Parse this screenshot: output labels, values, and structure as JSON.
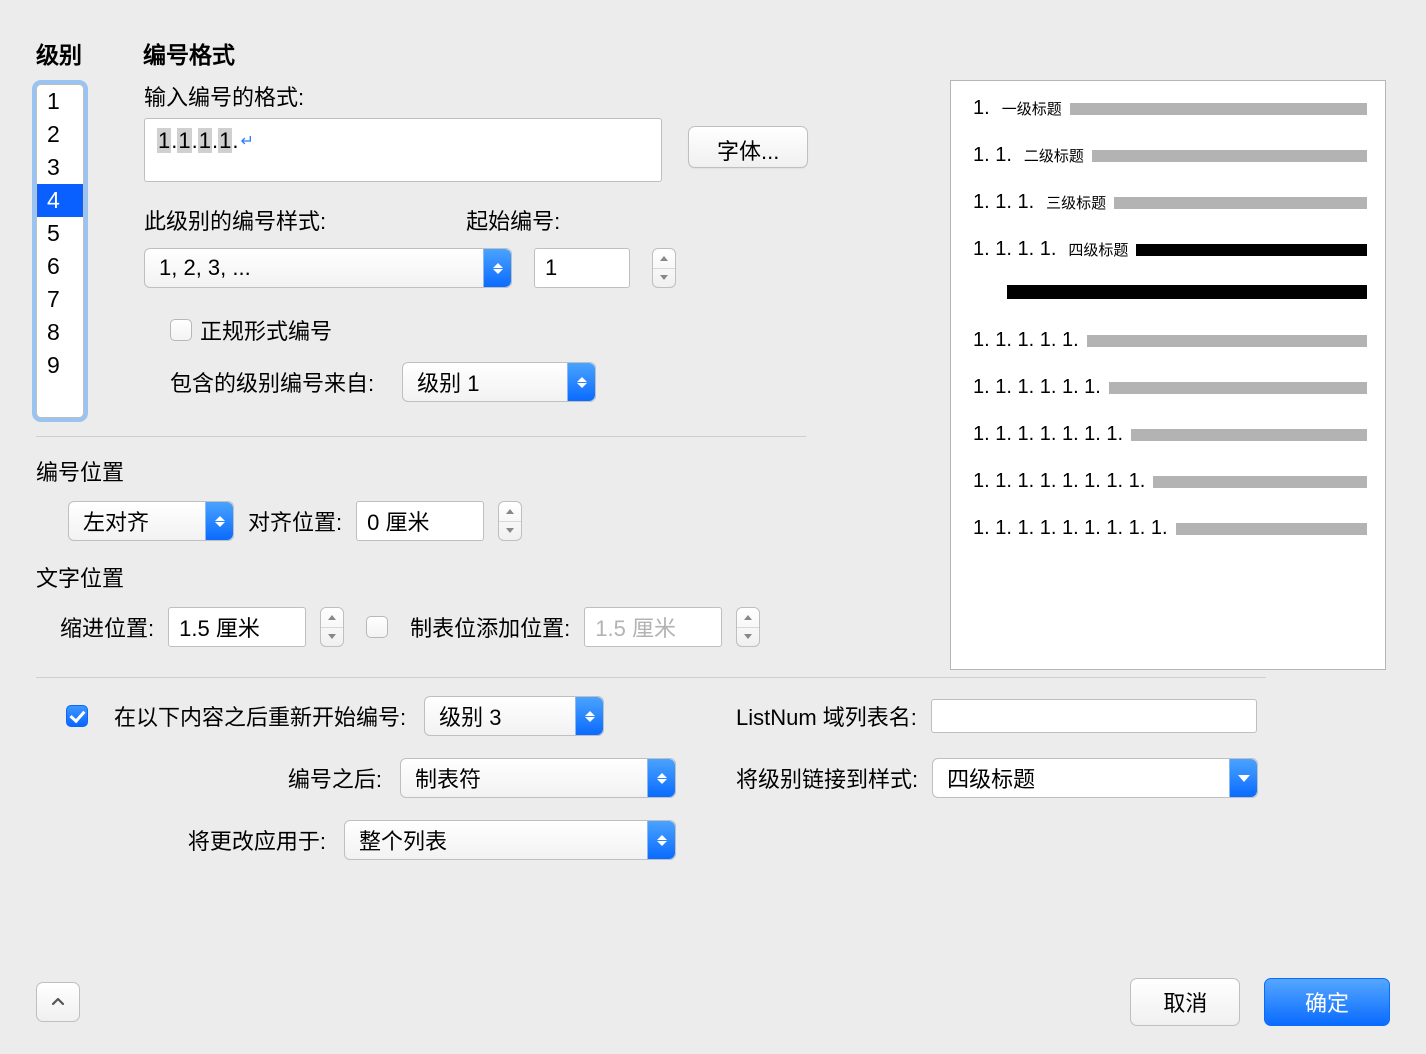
{
  "headers": {
    "level": "级别",
    "numfmt": "编号格式"
  },
  "levels": {
    "items": [
      "1",
      "2",
      "3",
      "4",
      "5",
      "6",
      "7",
      "8",
      "9"
    ],
    "selected_index": 3
  },
  "format": {
    "label": "输入编号的格式:",
    "value_parts": [
      "1",
      "1",
      "1",
      "1"
    ],
    "value_suffix": ".",
    "font_btn": "字体..."
  },
  "style_row": {
    "label": "此级别的编号样式:",
    "start_label": "起始编号:",
    "style_value": "1, 2, 3, ...",
    "start_value": "1"
  },
  "formal": {
    "checkbox_label": "正规形式编号",
    "checked": false
  },
  "include_from": {
    "label": "包含的级别编号来自:",
    "value": "级别 1"
  },
  "number_pos": {
    "section_label": "编号位置",
    "align_value": "左对齐",
    "align_at_label": "对齐位置:",
    "align_at_value": "0 厘米"
  },
  "text_pos": {
    "section_label": "文字位置",
    "indent_label": "缩进位置:",
    "indent_value": "1.5 厘米",
    "tabstop_chk": false,
    "tabstop_label": "制表位添加位置:",
    "tabstop_value": "1.5 厘米"
  },
  "restart": {
    "checked": true,
    "label": "在以下内容之后重新开始编号:",
    "value": "级别 3"
  },
  "after_number": {
    "label": "编号之后:",
    "value": "制表符"
  },
  "apply_to": {
    "label": "将更改应用于:",
    "value": "整个列表"
  },
  "listnum": {
    "label": "ListNum 域列表名:",
    "value": ""
  },
  "link_style": {
    "label": "将级别链接到样式:",
    "value": "四级标题"
  },
  "preview": {
    "rows": [
      {
        "num": "1.",
        "title": "一级标题",
        "bar": "grey"
      },
      {
        "num": "1. 1.",
        "title": "二级标题",
        "bar": "grey"
      },
      {
        "num": "1. 1. 1.",
        "title": "三级标题",
        "bar": "grey"
      },
      {
        "num": "1. 1. 1. 1.",
        "title": "四级标题",
        "bar": "dark"
      },
      {
        "num": "",
        "title": "",
        "bar": "dark",
        "extra": true
      },
      {
        "num": "1. 1. 1. 1. 1.",
        "title": "",
        "bar": "grey"
      },
      {
        "num": "1. 1. 1. 1. 1. 1.",
        "title": "",
        "bar": "grey"
      },
      {
        "num": "1. 1. 1. 1. 1. 1. 1.",
        "title": "",
        "bar": "grey"
      },
      {
        "num": "1. 1. 1. 1. 1. 1. 1. 1.",
        "title": "",
        "bar": "grey"
      },
      {
        "num": "1. 1. 1. 1. 1. 1. 1. 1. 1.",
        "title": "",
        "bar": "grey"
      }
    ]
  },
  "buttons": {
    "cancel": "取消",
    "ok": "确定"
  },
  "colors": {
    "selection_bg": "#0a5fff",
    "accent_blue": "#0a6bff",
    "bar_grey": "#b3b3b3",
    "background": "#ececec"
  }
}
